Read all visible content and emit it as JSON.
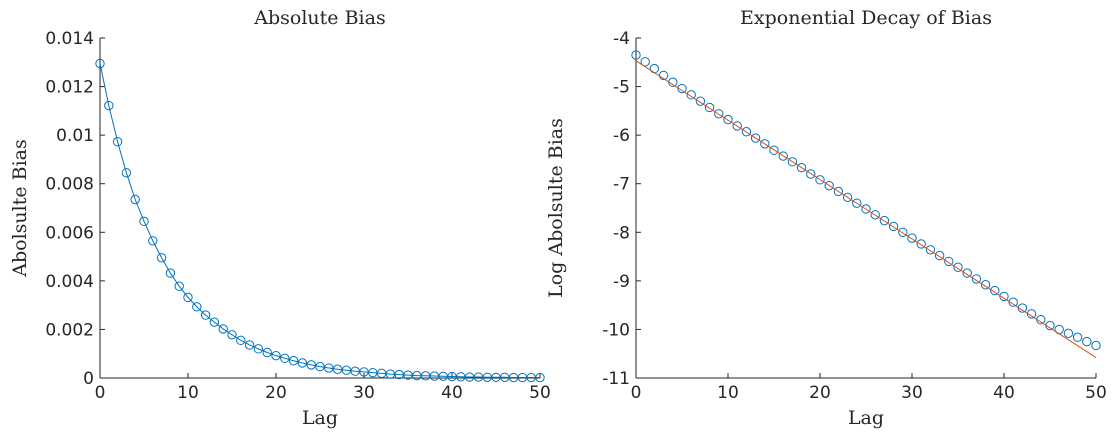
{
  "chart_data": [
    {
      "type": "line",
      "title": "Absolute Bias",
      "xlabel": "Lag",
      "ylabel": "Abolsulte Bias",
      "xlim": [
        0,
        50
      ],
      "ylim": [
        0,
        0.014
      ],
      "xticks": [
        0,
        10,
        20,
        30,
        40,
        50
      ],
      "xtick_labels": [
        "0",
        "10",
        "20",
        "30",
        "40",
        "50"
      ],
      "yticks": [
        0,
        0.002,
        0.004,
        0.006,
        0.008,
        0.01,
        0.012,
        0.014
      ],
      "ytick_labels": [
        "0",
        "0.002",
        "0.004",
        "0.006",
        "0.008",
        "0.01",
        "0.012",
        "0.014"
      ],
      "grid": false,
      "series": [
        {
          "color": "#0072BD",
          "marker": "circle",
          "line": true,
          "x": [
            0,
            1,
            2,
            3,
            4,
            5,
            6,
            7,
            8,
            9,
            10,
            11,
            12,
            13,
            14,
            15,
            16,
            17,
            18,
            19,
            20,
            21,
            22,
            23,
            24,
            25,
            26,
            27,
            28,
            29,
            30,
            31,
            32,
            33,
            34,
            35,
            36,
            37,
            38,
            39,
            40,
            41,
            42,
            43,
            44,
            45,
            46,
            47,
            48,
            49,
            50
          ],
          "y": [
            0.01295,
            0.01122,
            0.00973,
            0.00845,
            0.00735,
            0.00645,
            0.00565,
            0.00495,
            0.00432,
            0.00378,
            0.00332,
            0.00293,
            0.00259,
            0.0023,
            0.00202,
            0.00178,
            0.00155,
            0.00136,
            0.0012,
            0.00105,
            0.00092,
            0.00081,
            0.00071,
            0.00062,
            0.00054,
            0.00047,
            0.00041,
            0.00036,
            0.00032,
            0.00028,
            0.00025,
            0.00022,
            0.00019,
            0.00016,
            0.00014,
            0.00012,
            0.0001,
            9e-05,
            8e-05,
            7e-05,
            6e-05,
            5e-05,
            4e-05,
            4e-05,
            3e-05,
            3e-05,
            3e-05,
            2e-05,
            2e-05,
            2e-05,
            2e-05
          ]
        }
      ]
    },
    {
      "type": "scatter",
      "title": "Exponential Decay of Bias",
      "xlabel": "Lag",
      "ylabel": "Log Abolsulte Bias",
      "xlim": [
        0,
        50
      ],
      "ylim": [
        -11,
        -4
      ],
      "xticks": [
        0,
        10,
        20,
        30,
        40,
        50
      ],
      "xtick_labels": [
        "0",
        "10",
        "20",
        "30",
        "40",
        "50"
      ],
      "yticks": [
        -11,
        -10,
        -9,
        -8,
        -7,
        -6,
        -5,
        -4
      ],
      "ytick_labels": [
        "-11",
        "-10",
        "-9",
        "-8",
        "-7",
        "-6",
        "-5",
        "-4"
      ],
      "grid": false,
      "series": [
        {
          "color": "#0072BD",
          "marker": "circle",
          "line": false,
          "x": [
            0,
            1,
            2,
            3,
            4,
            5,
            6,
            7,
            8,
            9,
            10,
            11,
            12,
            13,
            14,
            15,
            16,
            17,
            18,
            19,
            20,
            21,
            22,
            23,
            24,
            25,
            26,
            27,
            28,
            29,
            30,
            31,
            32,
            33,
            34,
            35,
            36,
            37,
            38,
            39,
            40,
            41,
            42,
            43,
            44,
            45,
            46,
            47,
            48,
            49,
            50
          ],
          "y": [
            -4.35,
            -4.49,
            -4.63,
            -4.77,
            -4.91,
            -5.04,
            -5.17,
            -5.3,
            -5.43,
            -5.56,
            -5.68,
            -5.81,
            -5.93,
            -6.06,
            -6.18,
            -6.31,
            -6.43,
            -6.55,
            -6.67,
            -6.8,
            -6.92,
            -7.04,
            -7.16,
            -7.28,
            -7.4,
            -7.52,
            -7.64,
            -7.76,
            -7.88,
            -8.0,
            -8.12,
            -8.24,
            -8.36,
            -8.48,
            -8.6,
            -8.72,
            -8.84,
            -8.96,
            -9.08,
            -9.2,
            -9.32,
            -9.44,
            -9.56,
            -9.68,
            -9.8,
            -9.92,
            -10.0,
            -10.08,
            -10.16,
            -10.25,
            -10.33
          ]
        },
        {
          "color": "#D95319",
          "marker": "none",
          "line": true,
          "x": [
            0,
            50
          ],
          "y": [
            -4.47,
            -10.58
          ]
        }
      ]
    }
  ]
}
